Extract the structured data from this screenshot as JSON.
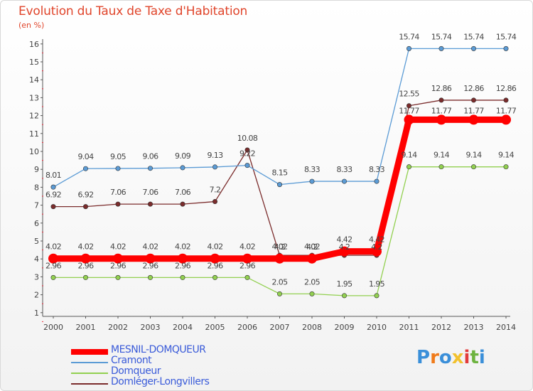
{
  "chart_data": {
    "type": "line",
    "title": "Evolution du Taux de Taxe d'Habitation",
    "subtitle": "(en %)",
    "categories": [
      "2000",
      "2001",
      "2002",
      "2003",
      "2004",
      "2005",
      "2006",
      "2007",
      "2008",
      "2009",
      "2010",
      "2011",
      "2012",
      "2013",
      "2014"
    ],
    "ylim": [
      0,
      16
    ],
    "yticks": [
      "1",
      "2",
      "3",
      "4",
      "5",
      "6",
      "7",
      "8",
      "9",
      "10",
      "11",
      "12",
      "13",
      "14",
      "15",
      "16"
    ],
    "grid": false,
    "series": [
      {
        "name": "MESNIL-DOMQUEUR",
        "color": "#ff0000",
        "values": [
          4.02,
          4.02,
          4.02,
          4.02,
          4.02,
          4.02,
          4.02,
          4.02,
          4.02,
          4.42,
          4.42,
          11.77,
          11.77,
          11.77,
          11.77
        ],
        "labels": [
          "4.02",
          "4.02",
          "4.02",
          "4.02",
          "4.02",
          "4.02",
          "4.02",
          "4.02",
          "4.02",
          "4.42",
          "4.42",
          "11.77",
          "11.77",
          "11.77",
          "11.77"
        ]
      },
      {
        "name": "Cramont",
        "color": "#5b9bd5",
        "values": [
          8.01,
          9.04,
          9.05,
          9.06,
          9.09,
          9.13,
          9.22,
          8.15,
          8.33,
          8.33,
          8.33,
          15.74,
          15.74,
          15.74,
          15.74
        ],
        "labels": [
          "8.01",
          "9.04",
          "9.05",
          "9.06",
          "9.09",
          "9.13",
          "9.22",
          "8.15",
          "8.33",
          "8.33",
          "8.33",
          "15.74",
          "15.74",
          "15.74",
          "15.74"
        ]
      },
      {
        "name": "Domqueur",
        "color": "#92d050",
        "values": [
          2.96,
          2.96,
          2.96,
          2.96,
          2.96,
          2.96,
          2.96,
          2.05,
          2.05,
          1.95,
          1.95,
          9.14,
          9.14,
          9.14,
          9.14
        ],
        "labels": [
          "2.96",
          "2.96",
          "2.96",
          "2.96",
          "2.96",
          "2.96",
          "2.96",
          "2.05",
          "2.05",
          "1.95",
          "1.95",
          "9.14",
          "9.14",
          "9.14",
          "9.14"
        ]
      },
      {
        "name": "Domléger-Longvillers",
        "color": "#7b2c2c",
        "values": [
          6.92,
          6.92,
          7.06,
          7.06,
          7.06,
          7.2,
          10.08,
          4.2,
          4.2,
          4.2,
          4.2,
          12.55,
          12.86,
          12.86,
          12.86
        ],
        "labels": [
          "6.92",
          "6.92",
          "7.06",
          "7.06",
          "7.06",
          "7.2",
          "10.08",
          "4.2",
          "4.2",
          "4.2",
          "4.2",
          "12.55",
          "12.86",
          "12.86",
          "12.86"
        ]
      }
    ]
  },
  "logo": {
    "text": "Proxiti"
  }
}
